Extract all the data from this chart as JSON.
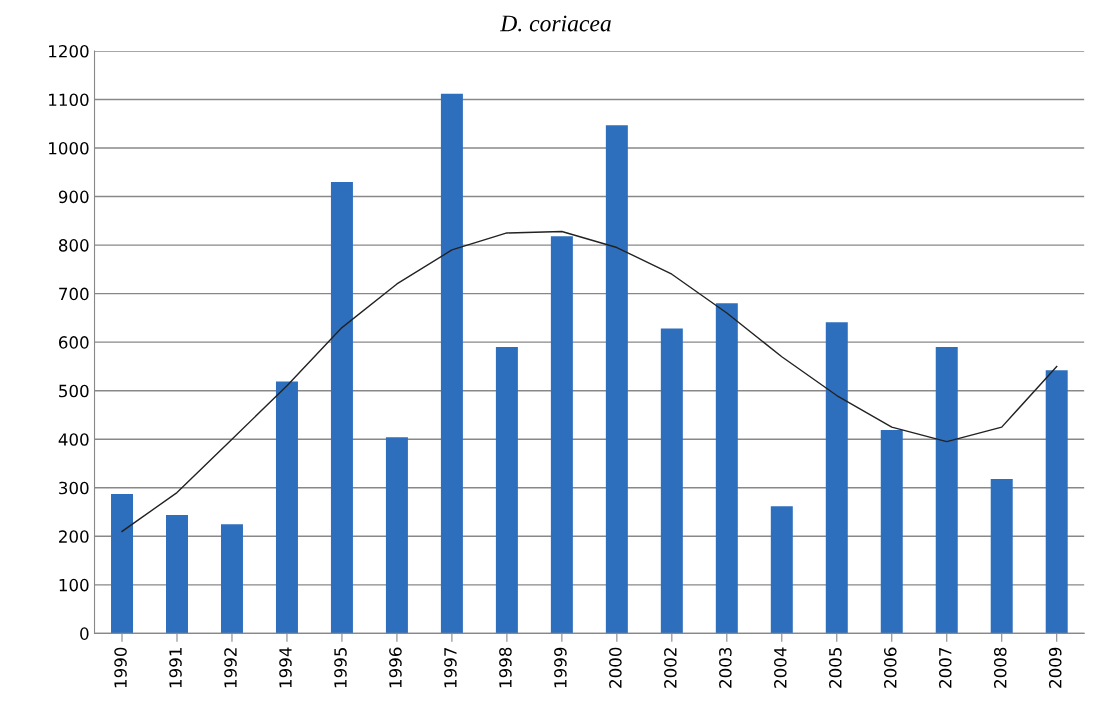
{
  "chart_data": {
    "type": "bar",
    "title": "D. coriacea",
    "categories": [
      "1990",
      "1991",
      "1992",
      "1994",
      "1995",
      "1996",
      "1997",
      "1998",
      "1999",
      "2000",
      "2002",
      "2003",
      "2004",
      "2005",
      "2006",
      "2007",
      "2008",
      "2009"
    ],
    "series": [
      {
        "color": "#2e6fbd",
        "values": [
          287,
          244,
          225,
          519,
          930,
          404,
          1112,
          590,
          818,
          1047,
          628,
          680,
          262,
          641,
          419,
          590,
          318,
          542
        ]
      },
      {
        "type": "line",
        "color": "#222222",
        "values": [
          210,
          290,
          400,
          510,
          630,
          720,
          790,
          825,
          828,
          795,
          740,
          660,
          570,
          490,
          425,
          395,
          425,
          550
        ]
      }
    ],
    "ylim": [
      0,
      1200
    ],
    "yticks": [
      0,
      100,
      200,
      300,
      400,
      500,
      600,
      700,
      800,
      900,
      1000,
      1100,
      1200
    ],
    "grid": "y",
    "legend": false,
    "marker": "none",
    "line_style": "solid"
  }
}
